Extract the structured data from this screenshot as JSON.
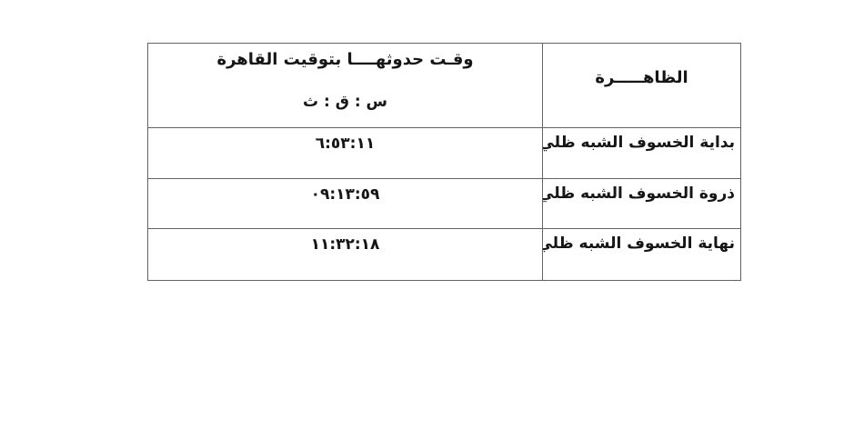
{
  "page": {
    "background_color": "#ffffff",
    "text_color": "#161616"
  },
  "table": {
    "border_color": "#636363",
    "header": {
      "time_column_title": "وقـت حدوثهــــا بتوقيت القاهرة",
      "time_column_units": "س : ق : ث",
      "phenomenon_column_title": "الظاهـــــرة"
    },
    "rows": [
      {
        "phenomenon": "بداية الخسوف الشبه ظلي",
        "time": "٦:٥٣:١١"
      },
      {
        "phenomenon": "ذروة الخسوف الشبه ظلي",
        "time": "٠٩:١٣:٥٩"
      },
      {
        "phenomenon": "نهاية الخسوف الشبه ظلي",
        "time": "١١:٣٢:١٨"
      }
    ]
  }
}
